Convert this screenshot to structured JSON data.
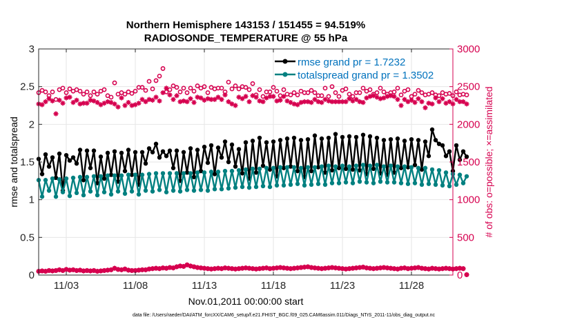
{
  "chart_data": {
    "type": "line",
    "title": "Northern Hemisphere 143153 / 151455 = 94.519%",
    "subtitle": "RADIOSONDE_TEMPERATURE @ 55 hPa",
    "xlabel": "Nov.01,2011 00:00:00 start",
    "ylabel_left": "rmse and totalspread",
    "ylabel_right": "# of obs: o=possible; ×=assimilated",
    "footer": "data file: /Users/raeder/DAI/ATM_forcXX/CAM6_setup/f.e21.FHIST_BGC.f09_025.CAM6assim.011/Diags_NTrS_2011-11/obs_diag_output.nc",
    "xlim": [
      1.0,
      31.0
    ],
    "ylim_left": [
      0,
      3
    ],
    "ylim_right": [
      0,
      3000
    ],
    "x_ticks": [
      3,
      8,
      13,
      18,
      23,
      28
    ],
    "x_tick_labels": [
      "11/03",
      "11/08",
      "11/13",
      "11/18",
      "11/23",
      "11/28"
    ],
    "y_ticks_left": [
      0,
      0.5,
      1,
      1.5,
      2,
      2.5,
      3
    ],
    "y_tick_labels_left": [
      "0",
      "0.5",
      "1",
      "1.5",
      "2",
      "2.5",
      "3"
    ],
    "y_ticks_right": [
      0,
      500,
      1000,
      1500,
      2000,
      2500,
      3000
    ],
    "y_tick_labels_right": [
      "0",
      "500",
      "1000",
      "1500",
      "2000",
      "2500",
      "3000"
    ],
    "x_start": 1.0,
    "x_step": 0.25,
    "series": [
      {
        "name": "rmse grand pr = 1.7232",
        "axis": "left",
        "color": "#000000",
        "marker": "filled-circle",
        "values": [
          1.54,
          1.34,
          1.6,
          1.44,
          1.56,
          1.29,
          1.61,
          1.12,
          1.59,
          1.52,
          1.56,
          1.48,
          1.66,
          1.26,
          1.65,
          1.42,
          1.65,
          1.22,
          1.57,
          1.28,
          1.62,
          1.33,
          1.64,
          1.24,
          1.62,
          1.38,
          1.66,
          1.33,
          1.63,
          1.2,
          1.63,
          1.48,
          1.68,
          1.63,
          1.74,
          1.56,
          1.64,
          1.58,
          1.65,
          1.42,
          1.65,
          1.25,
          1.63,
          1.36,
          1.68,
          1.3,
          1.66,
          1.38,
          1.7,
          1.49,
          1.72,
          1.34,
          1.69,
          1.56,
          1.77,
          1.5,
          1.73,
          1.44,
          1.67,
          1.35,
          1.76,
          1.28,
          1.78,
          1.36,
          1.82,
          1.45,
          1.76,
          1.4,
          1.77,
          1.31,
          1.79,
          1.42,
          1.81,
          1.44,
          1.82,
          1.38,
          1.79,
          1.3,
          1.8,
          1.38,
          1.85,
          1.43,
          1.81,
          1.36,
          1.82,
          1.39,
          1.87,
          1.42,
          1.83,
          1.41,
          1.84,
          1.4,
          1.83,
          1.39,
          1.86,
          1.34,
          1.84,
          1.41,
          1.82,
          1.35,
          1.79,
          1.33,
          1.8,
          1.36,
          1.81,
          1.42,
          1.78,
          1.43,
          1.8,
          1.46,
          1.79,
          1.4,
          1.77,
          1.58,
          1.93,
          1.79,
          1.74,
          1.72,
          1.58,
          1.64,
          1.38,
          1.72,
          1.53,
          1.64,
          1.57
        ],
        "legend": "rmse grand pr = 1.7232"
      },
      {
        "name": "totalspread grand pr = 1.3502",
        "axis": "left",
        "color": "#008080",
        "marker": "filled-circle",
        "values": [
          1.26,
          1.04,
          1.26,
          1.12,
          1.28,
          1.04,
          1.27,
          1.1,
          1.28,
          1.05,
          1.29,
          1.09,
          1.3,
          1.06,
          1.3,
          1.11,
          1.31,
          1.06,
          1.31,
          1.1,
          1.32,
          1.07,
          1.32,
          1.11,
          1.32,
          1.08,
          1.33,
          1.11,
          1.33,
          1.07,
          1.33,
          1.12,
          1.34,
          1.11,
          1.35,
          1.13,
          1.35,
          1.1,
          1.35,
          1.12,
          1.35,
          1.11,
          1.35,
          1.13,
          1.35,
          1.12,
          1.36,
          1.13,
          1.36,
          1.12,
          1.37,
          1.14,
          1.37,
          1.14,
          1.38,
          1.15,
          1.38,
          1.16,
          1.39,
          1.17,
          1.4,
          1.16,
          1.41,
          1.17,
          1.41,
          1.18,
          1.42,
          1.17,
          1.42,
          1.19,
          1.43,
          1.19,
          1.43,
          1.2,
          1.43,
          1.21,
          1.42,
          1.19,
          1.43,
          1.2,
          1.43,
          1.21,
          1.44,
          1.2,
          1.45,
          1.22,
          1.44,
          1.22,
          1.45,
          1.23,
          1.44,
          1.22,
          1.45,
          1.24,
          1.46,
          1.23,
          1.45,
          1.22,
          1.46,
          1.24,
          1.44,
          1.23,
          1.45,
          1.23,
          1.44,
          1.22,
          1.44,
          1.21,
          1.43,
          1.22,
          1.42,
          1.2,
          1.42,
          1.21,
          1.4,
          1.2,
          1.39,
          1.19,
          1.36,
          1.18,
          1.34,
          1.2,
          1.33,
          1.22,
          1.31
        ],
        "legend": "totalspread grand pr = 1.3502"
      },
      {
        "name": "possible obs",
        "axis": "right",
        "color": "#D6004F",
        "marker": "open-circle",
        "values": [
          2420,
          2450,
          2430,
          2380,
          2430,
          2330,
          2460,
          2480,
          2420,
          2470,
          2440,
          2460,
          2440,
          2400,
          2430,
          2380,
          2430,
          2400,
          2440,
          2460,
          2380,
          2360,
          2550,
          2400,
          2420,
          2400,
          2430,
          2410,
          2440,
          2490,
          2490,
          2450,
          2570,
          2470,
          2580,
          2640,
          2740,
          2430,
          2460,
          2510,
          2490,
          2430,
          2480,
          2420,
          2480,
          2440,
          2510,
          2480,
          2500,
          2420,
          2490,
          2470,
          2480,
          2480,
          2430,
          2560,
          2470,
          2510,
          2470,
          2500,
          2490,
          2460,
          2540,
          2390,
          2460,
          2370,
          2430,
          2430,
          2490,
          2440,
          2380,
          2460,
          2400,
          2390,
          2420,
          2390,
          2440,
          2420,
          2420,
          2450,
          2420,
          2380,
          2380,
          2480,
          2370,
          2500,
          2420,
          2370,
          2450,
          2470,
          2400,
          2370,
          2420,
          2420,
          2480,
          2440,
          2460,
          2400,
          2420,
          2480,
          2430,
          2400,
          2420,
          2430,
          2480,
          2390,
          2440,
          2460,
          2370,
          2400,
          2450,
          2420,
          2390,
          2400,
          2420,
          2390,
          2380,
          2420,
          2400,
          2410,
          2380,
          2430,
          2390,
          2400,
          2390
        ],
        "legend": ""
      },
      {
        "name": "assimilated obs",
        "axis": "right",
        "color": "#D6004F",
        "marker": "star",
        "values": [
          2270,
          2260,
          2300,
          2340,
          2310,
          2140,
          2320,
          2280,
          2350,
          2360,
          2290,
          2320,
          2270,
          2280,
          2280,
          2320,
          2310,
          2290,
          2260,
          2280,
          2300,
          2290,
          2270,
          2230,
          2350,
          2250,
          2290,
          2250,
          2260,
          2280,
          2330,
          2300,
          2330,
          2320,
          2360,
          2310,
          2420,
          2480,
          2390,
          2330,
          2380,
          2300,
          2310,
          2300,
          2340,
          2290,
          2360,
          2350,
          2320,
          2340,
          2330,
          2330,
          2360,
          2330,
          2390,
          2300,
          2270,
          2250,
          2360,
          2340,
          2370,
          2300,
          2380,
          2360,
          2310,
          2300,
          2350,
          2370,
          2370,
          2310,
          2320,
          2370,
          2310,
          2290,
          2270,
          2260,
          2290,
          2300,
          2300,
          2290,
          2330,
          2300,
          2290,
          2330,
          2310,
          2300,
          2300,
          2300,
          2300,
          2300,
          2340,
          2310,
          2330,
          2300,
          2290,
          2350,
          2370,
          2380,
          2360,
          2340,
          2350,
          2370,
          2380,
          2370,
          2330,
          2250,
          2330,
          2300,
          2320,
          2290,
          2340,
          2300,
          2220,
          2280,
          2270,
          2350,
          2300,
          2340,
          2280,
          2300,
          2270,
          2330,
          2300,
          2300,
          2270
        ],
        "legend": ""
      },
      {
        "name": "assimilated obs (low)",
        "axis": "right",
        "color": "#D6004F",
        "marker": "star-and-circle",
        "values": [
          50,
          55,
          50,
          60,
          55,
          60,
          70,
          60,
          75,
          65,
          70,
          60,
          65,
          55,
          60,
          55,
          60,
          50,
          55,
          60,
          65,
          70,
          90,
          75,
          70,
          80,
          65,
          60,
          60,
          65,
          70,
          70,
          80,
          85,
          90,
          85,
          95,
          90,
          100,
          95,
          110,
          120,
          115,
          135,
          120,
          110,
          100,
          95,
          90,
          85,
          80,
          85,
          90,
          85,
          95,
          90,
          85,
          80,
          85,
          90,
          95,
          90,
          85,
          80,
          85,
          90,
          95,
          85,
          90,
          95,
          100,
          95,
          90,
          85,
          90,
          95,
          100,
          105,
          110,
          100,
          95,
          90,
          85,
          90,
          95,
          100,
          95,
          90,
          85,
          80,
          85,
          90,
          95,
          100,
          105,
          95,
          90,
          85,
          90,
          95,
          100,
          95,
          90,
          85,
          80,
          90,
          95,
          85,
          90,
          95,
          100,
          90,
          85,
          80,
          90,
          85,
          80,
          85,
          90,
          85,
          80,
          85,
          90,
          85,
          5
        ],
        "legend": ""
      }
    ],
    "legend_position": "top-right"
  }
}
